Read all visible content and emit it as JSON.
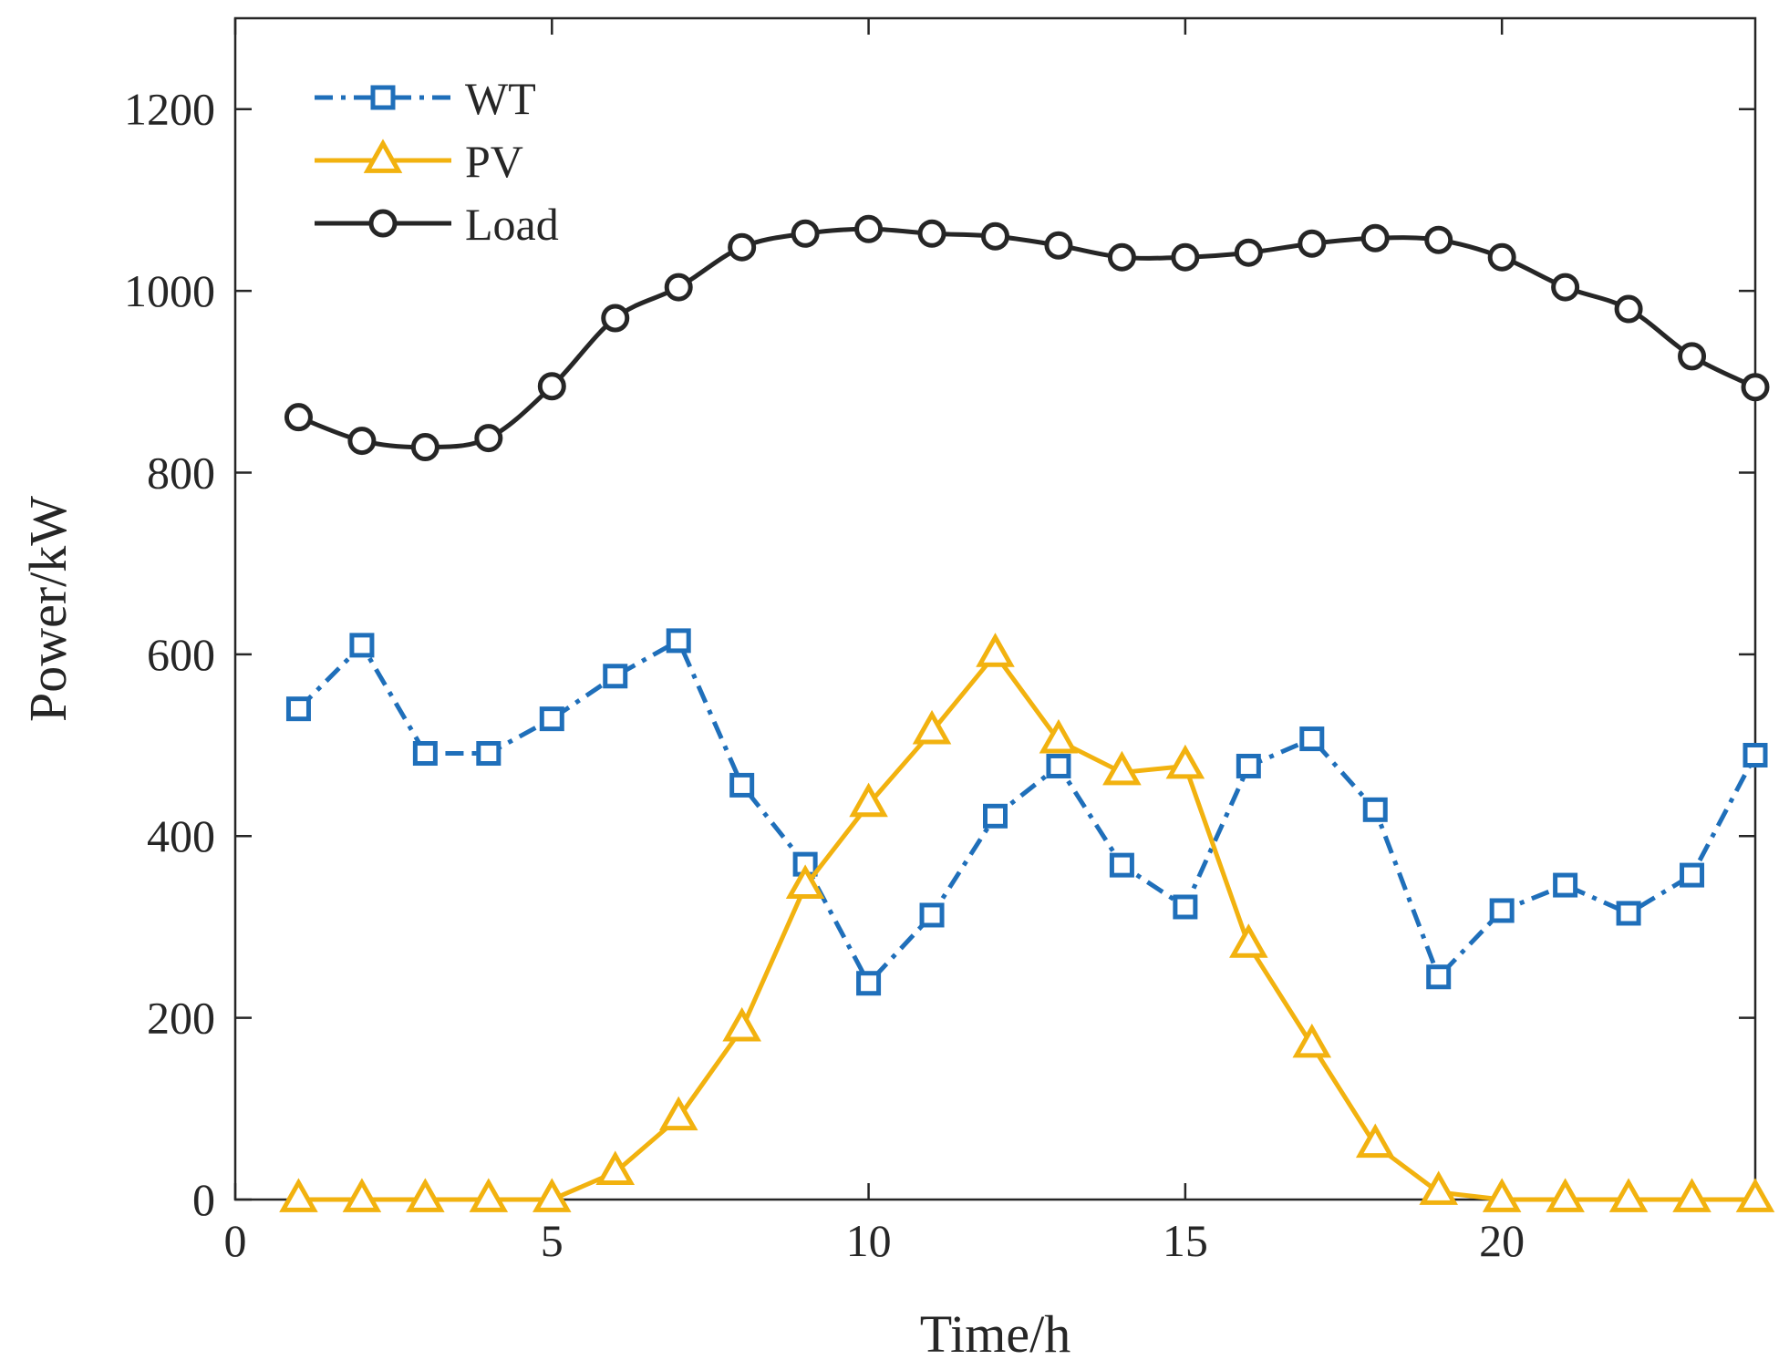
{
  "chart_data": {
    "type": "line",
    "title": "",
    "xlabel": "Time/h",
    "ylabel": "Power/kW",
    "xlim": [
      0,
      24
    ],
    "ylim": [
      0,
      1300
    ],
    "xticks": [
      0,
      5,
      10,
      15,
      20
    ],
    "yticks": [
      0,
      200,
      400,
      600,
      800,
      1000,
      1200
    ],
    "grid": false,
    "legend_position": "top-left",
    "x": [
      1,
      2,
      3,
      4,
      5,
      6,
      7,
      8,
      9,
      10,
      11,
      12,
      13,
      14,
      15,
      16,
      17,
      18,
      19,
      20,
      21,
      22,
      23,
      24
    ],
    "series": [
      {
        "name": "WT",
        "color": "#1f6fba",
        "line": "dashdot",
        "marker": "square",
        "values": [
          540,
          610,
          491,
          491,
          529,
          576,
          615,
          456,
          369,
          238,
          313,
          422,
          477,
          368,
          322,
          477,
          507,
          429,
          245,
          318,
          346,
          315,
          357,
          489
        ]
      },
      {
        "name": "PV",
        "color": "#f2b20f",
        "line": "solid",
        "marker": "triangle",
        "values": [
          0,
          0,
          0,
          0,
          0,
          30,
          90,
          188,
          345,
          435,
          515,
          600,
          505,
          470,
          477,
          280,
          170,
          60,
          8,
          0,
          0,
          0,
          0,
          0
        ]
      },
      {
        "name": "Load",
        "color": "#262626",
        "line": "solid",
        "marker": "circle",
        "values": [
          861,
          835,
          828,
          838,
          895,
          970,
          1004,
          1048,
          1063,
          1068,
          1063,
          1060,
          1050,
          1037,
          1037,
          1042,
          1052,
          1058,
          1056,
          1037,
          1004,
          980,
          928,
          894
        ]
      }
    ]
  }
}
